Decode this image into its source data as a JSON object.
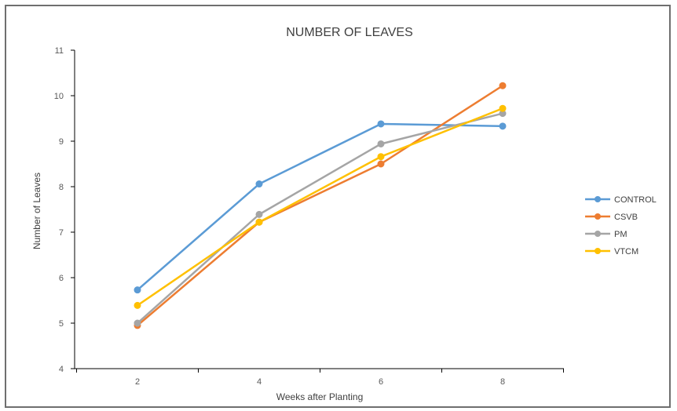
{
  "chart_data": {
    "type": "line",
    "title": "NUMBER OF LEAVES",
    "xlabel": "Weeks after Planting",
    "ylabel": "Number of Leaves",
    "x": [
      2,
      4,
      6,
      8
    ],
    "x_tick_labels": [
      "2",
      "4",
      "6",
      "8"
    ],
    "ylim": [
      4,
      11
    ],
    "y_ticks": [
      4,
      5,
      6,
      7,
      8,
      9,
      10,
      11
    ],
    "y_tick_labels": [
      "4",
      "5",
      "6",
      "7",
      "8",
      "9",
      "10",
      "11"
    ],
    "grid": false,
    "legend_position": "right",
    "series": [
      {
        "name": "CONTROL",
        "color": "#5b9bd5",
        "values": [
          5.73,
          8.06,
          9.38,
          9.33
        ]
      },
      {
        "name": "CSVB",
        "color": "#ed7d31",
        "values": [
          4.95,
          7.22,
          8.5,
          10.22
        ]
      },
      {
        "name": "PM",
        "color": "#a5a5a5",
        "values": [
          5.0,
          7.39,
          8.94,
          9.61
        ]
      },
      {
        "name": "VTCM",
        "color": "#ffc000",
        "values": [
          5.39,
          7.22,
          8.66,
          9.72
        ]
      }
    ]
  }
}
